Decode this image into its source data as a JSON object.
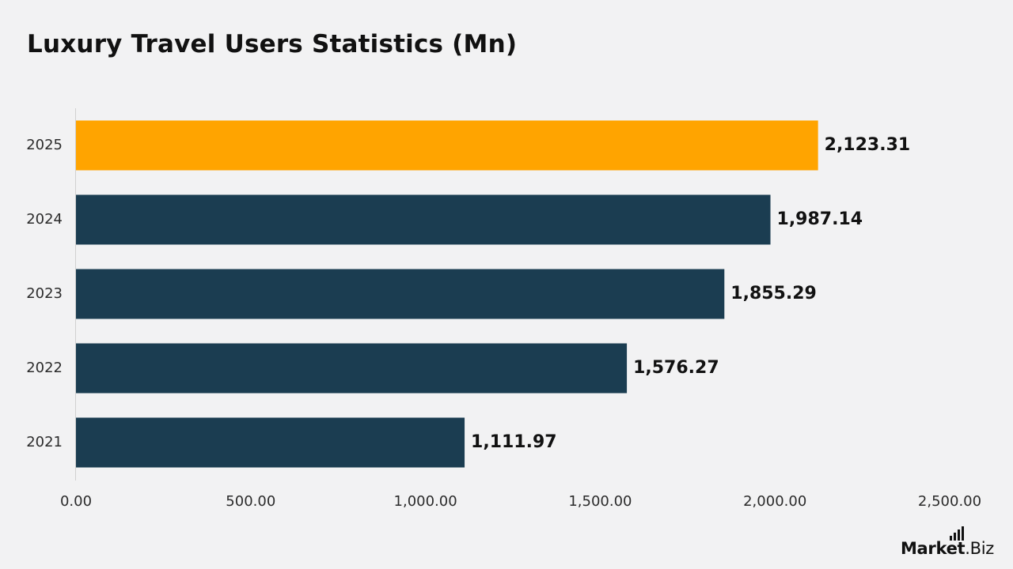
{
  "title": "Luxury Travel Users Statistics (Mn)",
  "brand": {
    "name_bold": "Market",
    "name_rest": ".Biz"
  },
  "colors": {
    "bar": "#1b3d51",
    "highlight": "#ffa400",
    "background": "#f2f2f3"
  },
  "chart_data": {
    "type": "bar",
    "orientation": "horizontal",
    "categories": [
      "2025",
      "2024",
      "2023",
      "2022",
      "2021"
    ],
    "values": [
      2123.31,
      1987.14,
      1855.29,
      1576.27,
      1111.97
    ],
    "value_labels": [
      "2,123.31",
      "1,987.14",
      "1,855.29",
      "1,576.27",
      "1,111.97"
    ],
    "highlight_category": "2025",
    "xlim": [
      0,
      2500
    ],
    "xticks": [
      "0.00",
      "500.00",
      "1,000.00",
      "1,500.00",
      "2,000.00",
      "2,500.00"
    ],
    "xtick_values": [
      0,
      500,
      1000,
      1500,
      2000,
      2500
    ],
    "grid": false
  }
}
